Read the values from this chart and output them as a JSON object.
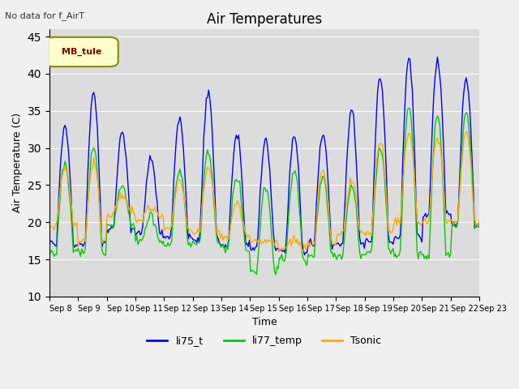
{
  "title": "Air Temperatures",
  "xlabel": "Time",
  "ylabel": "Air Temperature (C)",
  "top_left_text": "No data for f_AirT",
  "legend_box_label": "MB_tule",
  "ylim": [
    10,
    46
  ],
  "yticks": [
    10,
    15,
    20,
    25,
    30,
    35,
    40,
    45
  ],
  "x_labels": [
    "Sep 8",
    "Sep 9",
    "Sep 10",
    "Sep 11",
    "Sep 12",
    "Sep 13",
    "Sep 14",
    "Sep 15",
    "Sep 16",
    "Sep 17",
    "Sep 18",
    "Sep 19",
    "Sep 20",
    "Sep 21",
    "Sep 22",
    "Sep 23"
  ],
  "line_colors": {
    "li75_t": "#0000ff",
    "li77_temp": "#00cc00",
    "Tsonic": "#ffaa00"
  },
  "peaks_li75": [
    33,
    37.5,
    32,
    28.5,
    34,
    37.5,
    32,
    31,
    31.5,
    32,
    35,
    39.5,
    42,
    42,
    39.5
  ],
  "nights_li75": [
    17,
    17,
    19,
    18.5,
    18,
    17.5,
    17,
    16.5,
    16,
    17,
    17,
    17.5,
    18,
    21,
    19.5
  ],
  "peaks_li77": [
    28,
    30,
    25,
    21,
    27,
    29.5,
    26,
    25,
    27,
    26,
    25,
    30,
    35.5,
    34.5,
    34.5
  ],
  "nights_li77": [
    16,
    16,
    19.5,
    17.5,
    17,
    17,
    16.5,
    13.5,
    15,
    15.5,
    15.5,
    16,
    15.5,
    15.5,
    19.5
  ],
  "peaks_Ts": [
    27.5,
    28,
    23.5,
    22,
    25.5,
    27.5,
    22.5,
    17.5,
    17.5,
    27,
    25.5,
    31,
    32,
    31.5,
    32
  ],
  "nights_Ts": [
    19.5,
    17.5,
    21,
    20.5,
    19,
    18.5,
    18,
    17.5,
    16.5,
    17,
    18.5,
    18.5,
    20,
    20,
    20
  ],
  "legend_entries": [
    "li75_t",
    "li77_temp",
    "Tsonic"
  ]
}
